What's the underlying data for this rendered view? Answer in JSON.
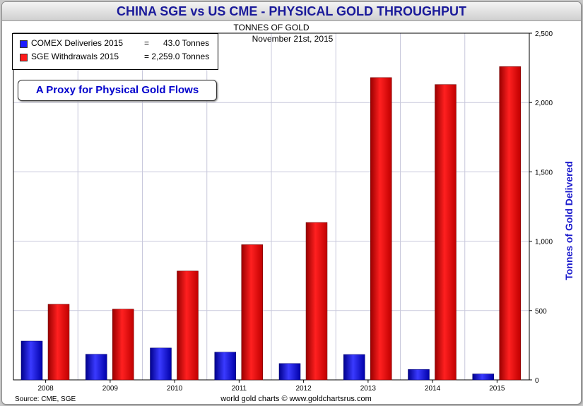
{
  "header": {
    "title": "CHINA SGE vs US CME - PHYSICAL GOLD THROUGHPUT",
    "subtitle": "TONNES OF GOLD",
    "date": "November 21st, 2015"
  },
  "legend": {
    "items": [
      {
        "label": "COMEX Deliveries 2015",
        "value": "=      43.0 Tonnes",
        "color": "#1a1aff"
      },
      {
        "label": "SGE Withdrawals 2015",
        "value": "= 2,259.0 Tonnes",
        "color": "#ff1a1a"
      }
    ]
  },
  "annotation": "A Proxy for Physical Gold Flows",
  "footer": {
    "source": "Source: CME, SGE",
    "credit": "world gold charts © www.goldchartsrus.com"
  },
  "chart_data": {
    "type": "bar",
    "title": "CHINA SGE vs US CME - PHYSICAL GOLD THROUGHPUT",
    "subtitle": "TONNES OF GOLD",
    "ylabel": "Tonnes of Gold Delivered",
    "ylim": [
      0,
      2500
    ],
    "yticks": [
      0,
      500,
      1000,
      1500,
      2000,
      2500
    ],
    "ytick_labels": [
      "0",
      "500",
      "1,000",
      "1,500",
      "2,000",
      "2,500"
    ],
    "y_axis_side": "right",
    "grid": true,
    "categories": [
      "2008",
      "2009",
      "2010",
      "2011",
      "2012",
      "2013",
      "2014",
      "2015"
    ],
    "series": [
      {
        "name": "COMEX Deliveries",
        "color": "#1a1aff",
        "values": [
          280,
          185,
          230,
          200,
          118,
          183,
          75,
          43
        ]
      },
      {
        "name": "SGE Withdrawals",
        "color": "#ff1a1a",
        "values": [
          545,
          510,
          785,
          975,
          1135,
          2180,
          2130,
          2259
        ]
      }
    ]
  }
}
